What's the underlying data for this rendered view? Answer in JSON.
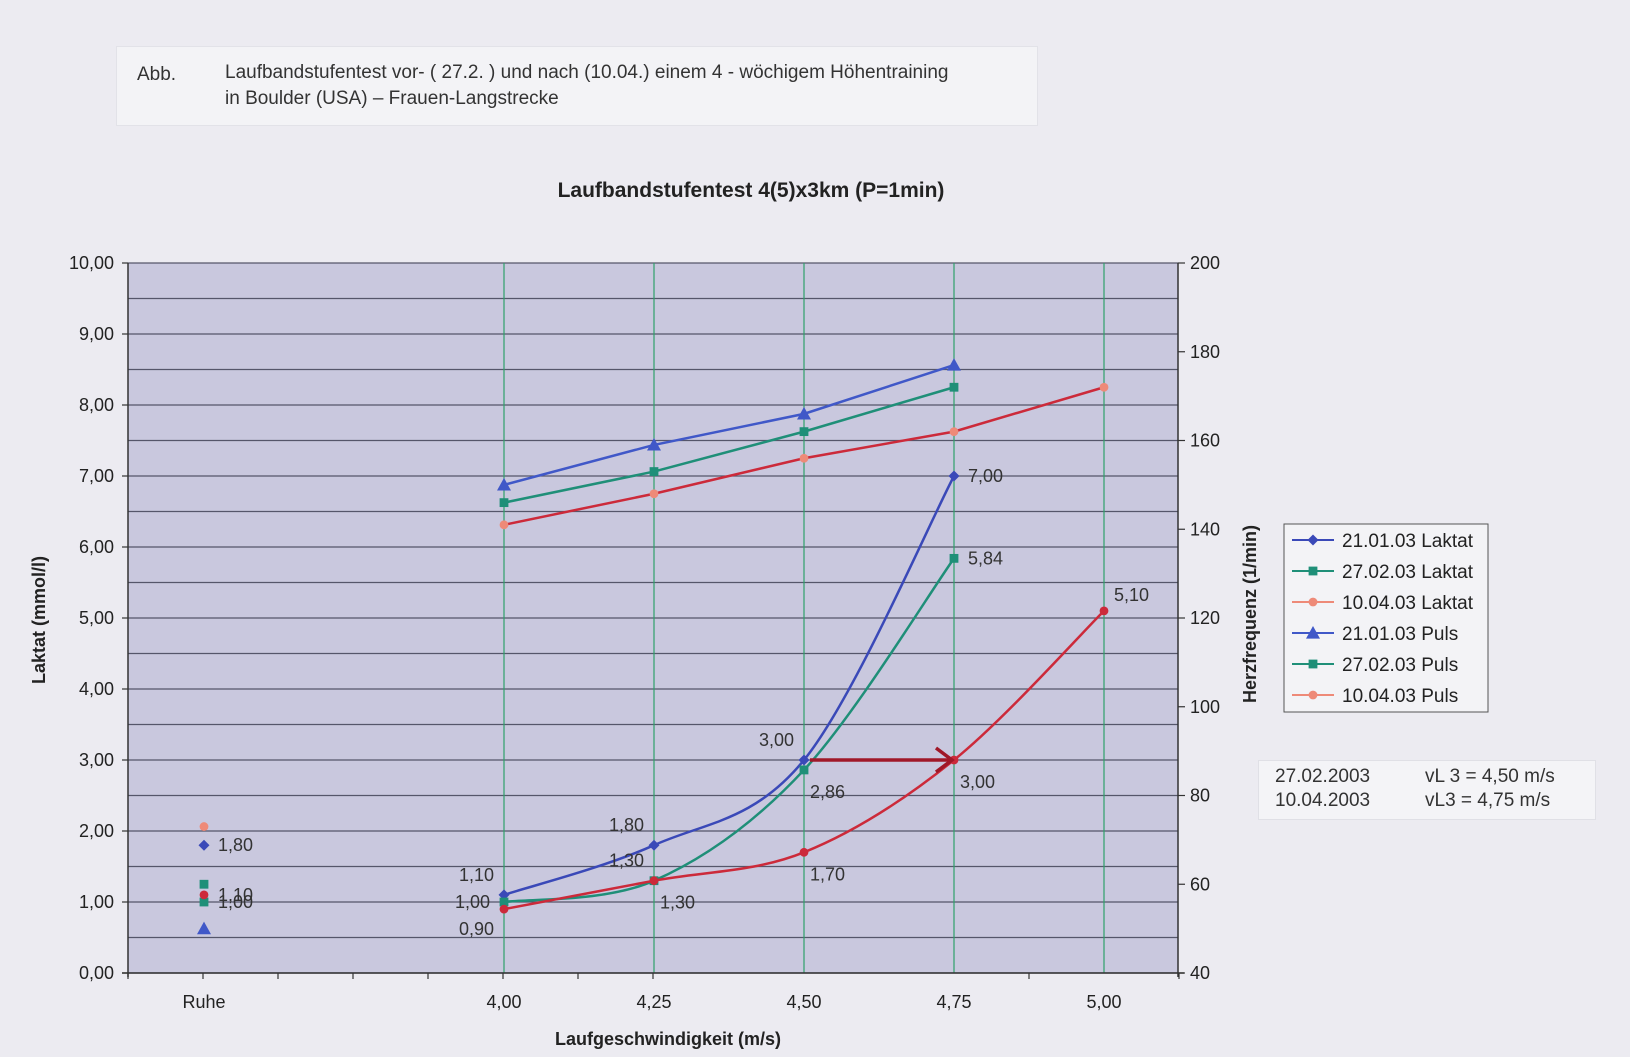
{
  "caption": {
    "abb": "Abb.",
    "line1": "Laufbandstufentest vor- ( 27.2. ) und nach (10.04.) einem 4 - wöchigem Höhentraining",
    "line2": "in Boulder (USA) – Frauen-Langstrecke"
  },
  "info": {
    "rows": [
      {
        "date": "27.02.2003",
        "text": "vL 3  =  4,50 m/s"
      },
      {
        "date": "10.04.2003",
        "text": "vL3   =  4,75 m/s"
      }
    ]
  },
  "chart_data": {
    "type": "line",
    "title": "Laufbandstufentest 4(5)x3km (P=1min)",
    "xlabel": "Laufgeschwindigkeit (m/s)",
    "ylabel": "Laktat (mmol/l)",
    "y2label": "Herzfrequenz (1/min)",
    "categories": [
      "Ruhe",
      "4,00",
      "4,25",
      "4,50",
      "4,75",
      "5,00"
    ],
    "x": [
      3.5,
      4.0,
      4.25,
      4.5,
      4.75,
      5.0
    ],
    "ylim": [
      0,
      10
    ],
    "y_ticks": [
      "0,00",
      "1,00",
      "2,00",
      "3,00",
      "4,00",
      "5,00",
      "6,00",
      "7,00",
      "8,00",
      "9,00",
      "10,00"
    ],
    "y2lim": [
      40,
      200
    ],
    "y2_ticks": [
      "40",
      "60",
      "80",
      "100",
      "120",
      "140",
      "160",
      "180",
      "200"
    ],
    "legend_position": "right",
    "grid": true,
    "series": [
      {
        "name": "21.01.03 Laktat",
        "axis": "left",
        "color": "#3a49b8",
        "marker": "diamond",
        "x": [
          3.5,
          4.0,
          4.25,
          4.5,
          4.75
        ],
        "values": [
          1.8,
          1.1,
          1.8,
          3.0,
          7.0
        ]
      },
      {
        "name": "27.02.03 Laktat",
        "axis": "left",
        "color": "#1f8f78",
        "marker": "square",
        "x": [
          3.5,
          4.0,
          4.25,
          4.5,
          4.75
        ],
        "values": [
          1.0,
          1.0,
          1.3,
          2.86,
          5.84
        ]
      },
      {
        "name": "10.04.03 Laktat",
        "axis": "left",
        "color": "#cc2a3a",
        "marker": "circle",
        "x": [
          3.5,
          4.0,
          4.25,
          4.5,
          4.75,
          5.0
        ],
        "values": [
          1.1,
          0.9,
          1.3,
          1.7,
          3.0,
          5.1
        ]
      },
      {
        "name": "21.01.03 Puls",
        "axis": "right",
        "color": "#4058c8",
        "marker": "triangle",
        "x": [
          3.5,
          4.0,
          4.25,
          4.5,
          4.75
        ],
        "values": [
          50,
          150,
          159,
          166,
          177
        ]
      },
      {
        "name": "27.02.03 Puls",
        "axis": "right",
        "color": "#1f8f78",
        "marker": "square",
        "x": [
          3.5,
          4.0,
          4.25,
          4.5,
          4.75
        ],
        "values": [
          60,
          146,
          153,
          162,
          172
        ]
      },
      {
        "name": "10.04.03 Puls",
        "axis": "right",
        "color": "#cc2a3a",
        "marker": "circle",
        "x": [
          3.5,
          4.0,
          4.25,
          4.5,
          4.75,
          5.0
        ],
        "values": [
          73,
          141,
          148,
          156,
          162,
          172
        ]
      }
    ],
    "data_labels": [
      {
        "x": 3.5,
        "y": 1.8,
        "text": "1,80",
        "pos": "right"
      },
      {
        "x": 3.5,
        "y": 1.1,
        "text": "1,10",
        "pos": "right"
      },
      {
        "x": 3.5,
        "y": 1.0,
        "text": "1,00",
        "pos": "right"
      },
      {
        "x": 4.0,
        "y": 1.1,
        "text": "1,10",
        "pos": "left-above"
      },
      {
        "x": 4.0,
        "y": 1.0,
        "text": "1,00",
        "pos": "left"
      },
      {
        "x": 4.0,
        "y": 0.9,
        "text": "0,90",
        "pos": "left-below"
      },
      {
        "x": 4.25,
        "y": 1.8,
        "text": "1,80",
        "pos": "left-above"
      },
      {
        "x": 4.25,
        "y": 1.3,
        "text": "1,30",
        "pos": "left-above"
      },
      {
        "x": 4.25,
        "y": 1.3,
        "text": "1,30",
        "pos": "right-below"
      },
      {
        "x": 4.5,
        "y": 3.0,
        "text": "3,00",
        "pos": "left-above"
      },
      {
        "x": 4.5,
        "y": 2.86,
        "text": "2,86",
        "pos": "right-below"
      },
      {
        "x": 4.5,
        "y": 1.7,
        "text": "1,70",
        "pos": "right-below"
      },
      {
        "x": 4.75,
        "y": 7.0,
        "text": "7,00",
        "pos": "right"
      },
      {
        "x": 4.75,
        "y": 5.84,
        "text": "5,84",
        "pos": "right"
      },
      {
        "x": 4.75,
        "y": 3.0,
        "text": "3,00",
        "pos": "right-below"
      },
      {
        "x": 5.0,
        "y": 5.1,
        "text": "5,10",
        "pos": "right-above"
      }
    ],
    "annotation_arrow": {
      "from": {
        "x": 4.5,
        "y": 3.0
      },
      "to": {
        "x": 4.75,
        "y": 3.0
      },
      "color": "#a01828"
    }
  }
}
